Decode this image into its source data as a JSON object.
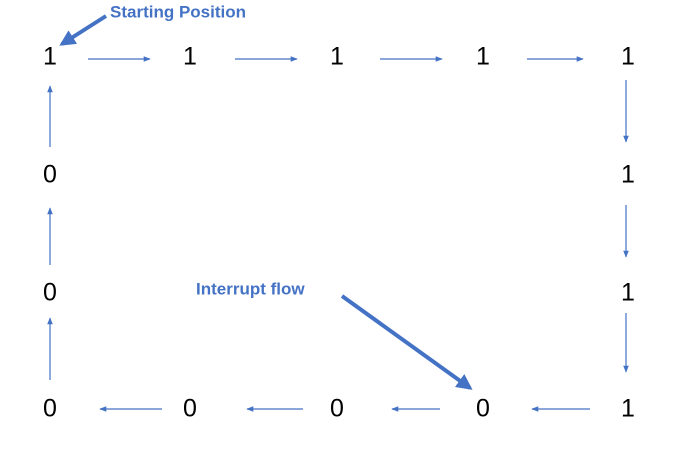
{
  "nodes": [
    {
      "label": "1"
    },
    {
      "label": "1"
    },
    {
      "label": "1"
    },
    {
      "label": "1"
    },
    {
      "label": "1"
    },
    {
      "label": "1"
    },
    {
      "label": "1"
    },
    {
      "label": "1"
    },
    {
      "label": "0"
    },
    {
      "label": "0"
    },
    {
      "label": "0"
    },
    {
      "label": "0"
    },
    {
      "label": "0"
    },
    {
      "label": "0"
    }
  ],
  "annotations": [
    {
      "text": "Starting Position"
    },
    {
      "text": "Interrupt flow"
    }
  ]
}
